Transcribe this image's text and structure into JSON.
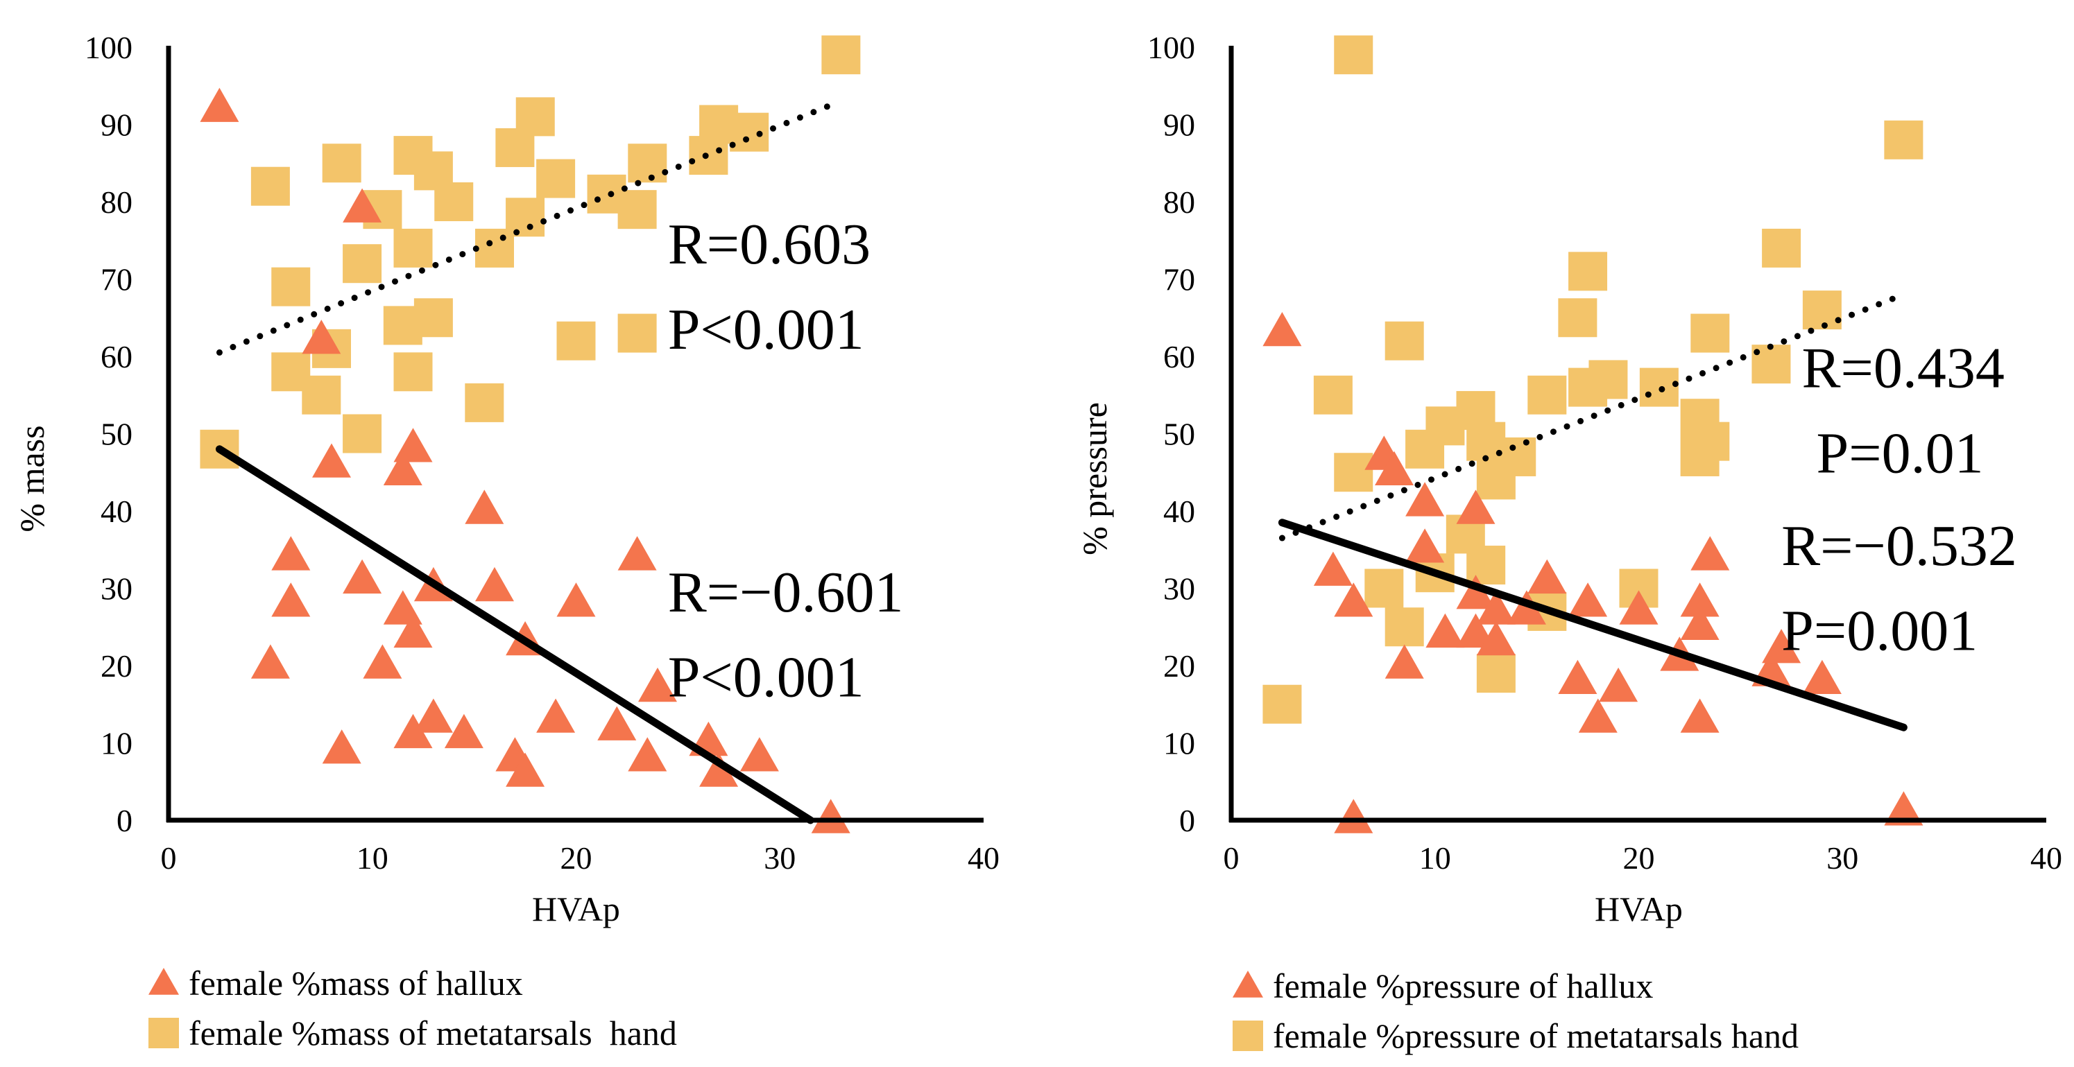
{
  "chart_data": [
    {
      "type": "scatter",
      "id": "mass",
      "title": "",
      "xlabel": "HVAp",
      "ylabel": "% mass",
      "xlim": [
        0,
        40
      ],
      "ylim": [
        0,
        100
      ],
      "xticks": [
        0,
        10,
        20,
        30,
        40
      ],
      "yticks": [
        0,
        10,
        20,
        30,
        40,
        50,
        60,
        70,
        80,
        90,
        100
      ],
      "series": [
        {
          "name": "female %mass of hallux",
          "marker": "triangle",
          "color": "#F4754D",
          "points": [
            [
              2.5,
              92
            ],
            [
              9.5,
              79
            ],
            [
              7.5,
              62
            ],
            [
              8,
              46
            ],
            [
              12,
              48
            ],
            [
              11.5,
              45
            ],
            [
              15.5,
              40
            ],
            [
              6,
              34
            ],
            [
              6,
              28
            ],
            [
              9.5,
              31
            ],
            [
              16,
              30
            ],
            [
              13,
              30
            ],
            [
              11.5,
              27
            ],
            [
              12,
              24
            ],
            [
              17.5,
              23
            ],
            [
              20,
              28
            ],
            [
              5,
              20
            ],
            [
              10.5,
              20
            ],
            [
              23,
              34
            ],
            [
              8.5,
              9
            ],
            [
              13,
              13
            ],
            [
              14.5,
              11
            ],
            [
              12,
              11
            ],
            [
              17,
              8
            ],
            [
              17.5,
              6
            ],
            [
              19,
              13
            ],
            [
              22,
              12
            ],
            [
              24,
              17
            ],
            [
              23.5,
              8
            ],
            [
              26.5,
              10
            ],
            [
              27,
              6
            ],
            [
              29,
              8
            ],
            [
              32.5,
              0
            ]
          ]
        },
        {
          "name": "female %mass of metatarsals  hand",
          "marker": "square",
          "color": "#F3C46A",
          "points": [
            [
              5,
              82
            ],
            [
              8.5,
              85
            ],
            [
              10.5,
              79
            ],
            [
              12,
              86
            ],
            [
              13,
              84
            ],
            [
              14,
              80
            ],
            [
              9.5,
              72
            ],
            [
              12,
              74
            ],
            [
              11.5,
              64
            ],
            [
              13,
              65
            ],
            [
              12,
              58
            ],
            [
              6,
              69
            ],
            [
              6,
              58
            ],
            [
              8,
              61
            ],
            [
              7.5,
              55
            ],
            [
              9.5,
              50
            ],
            [
              15.5,
              54
            ],
            [
              16,
              74
            ],
            [
              17,
              87
            ],
            [
              18,
              91
            ],
            [
              17.5,
              78
            ],
            [
              19,
              83
            ],
            [
              21.5,
              81
            ],
            [
              23,
              79
            ],
            [
              23.5,
              85
            ],
            [
              20,
              62
            ],
            [
              23,
              63
            ],
            [
              26.5,
              86
            ],
            [
              27,
              90
            ],
            [
              28.5,
              89
            ],
            [
              33,
              99
            ],
            [
              2.5,
              48
            ]
          ]
        }
      ],
      "trendlines": [
        {
          "series": "female %mass of metatarsals  hand",
          "style": "dotted",
          "x": [
            2.5,
            32.5
          ],
          "y": [
            60.5,
            92.5
          ]
        },
        {
          "series": "female %mass of hallux",
          "style": "solid",
          "x": [
            2.5,
            31.5
          ],
          "y": [
            48,
            0
          ]
        }
      ],
      "annotations": [
        {
          "id": "r_meta",
          "text": "R=0.603",
          "x": 24.5,
          "y": 72
        },
        {
          "id": "p_meta",
          "text": "P<0.001",
          "x": 24.5,
          "y": 61
        },
        {
          "id": "r_hallux",
          "text": "R=−0.601",
          "x": 24.5,
          "y": 27
        },
        {
          "id": "p_hallux",
          "text": "P<0.001",
          "x": 24.5,
          "y": 16
        }
      ]
    },
    {
      "type": "scatter",
      "id": "pressure",
      "title": "",
      "xlabel": "HVAp",
      "ylabel": "% pressure",
      "xlim": [
        0,
        40
      ],
      "ylim": [
        0,
        100
      ],
      "xticks": [
        0,
        10,
        20,
        30,
        40
      ],
      "yticks": [
        0,
        10,
        20,
        30,
        40,
        50,
        60,
        70,
        80,
        90,
        100
      ],
      "series": [
        {
          "name": "female %pressure of hallux",
          "marker": "triangle",
          "color": "#F4754D",
          "points": [
            [
              2.5,
              63
            ],
            [
              7.5,
              47
            ],
            [
              8,
              45
            ],
            [
              9.5,
              41
            ],
            [
              12,
              40
            ],
            [
              5,
              32
            ],
            [
              6,
              28
            ],
            [
              9.5,
              35
            ],
            [
              12,
              29
            ],
            [
              13,
              27
            ],
            [
              14.5,
              27
            ],
            [
              15.5,
              31
            ],
            [
              17.5,
              28
            ],
            [
              10.5,
              24
            ],
            [
              12,
              24
            ],
            [
              13,
              23
            ],
            [
              8.5,
              20
            ],
            [
              17,
              18
            ],
            [
              19,
              17
            ],
            [
              18,
              13
            ],
            [
              20,
              27
            ],
            [
              22,
              21
            ],
            [
              23,
              25
            ],
            [
              23,
              28
            ],
            [
              23.5,
              34
            ],
            [
              23,
              13
            ],
            [
              26.5,
              19
            ],
            [
              27,
              22
            ],
            [
              29,
              18
            ],
            [
              6,
              0
            ],
            [
              33,
              1
            ]
          ]
        },
        {
          "name": "female %pressure of metatarsals hand",
          "marker": "square",
          "color": "#F3C46A",
          "points": [
            [
              6,
              99
            ],
            [
              33,
              88
            ],
            [
              27,
              74
            ],
            [
              17.5,
              71
            ],
            [
              17,
              65
            ],
            [
              23.5,
              63
            ],
            [
              29,
              66
            ],
            [
              26.5,
              59
            ],
            [
              8.5,
              62
            ],
            [
              5,
              55
            ],
            [
              6,
              45
            ],
            [
              9.5,
              48
            ],
            [
              10.5,
              51
            ],
            [
              12,
              53
            ],
            [
              12.5,
              49
            ],
            [
              13,
              44
            ],
            [
              14,
              47
            ],
            [
              15.5,
              55
            ],
            [
              17.5,
              56
            ],
            [
              18.5,
              57
            ],
            [
              21,
              56
            ],
            [
              23,
              52
            ],
            [
              23,
              47
            ],
            [
              23.5,
              49
            ],
            [
              11.5,
              37
            ],
            [
              12.5,
              33
            ],
            [
              10,
              32
            ],
            [
              7.5,
              30
            ],
            [
              8.5,
              25
            ],
            [
              15.5,
              27
            ],
            [
              20,
              30
            ],
            [
              13,
              19
            ],
            [
              2.5,
              15
            ]
          ]
        }
      ],
      "trendlines": [
        {
          "series": "female %pressure of metatarsals hand",
          "style": "dotted",
          "x": [
            2.5,
            33
          ],
          "y": [
            36.5,
            68
          ]
        },
        {
          "series": "female %pressure of hallux",
          "style": "solid",
          "x": [
            2.5,
            33
          ],
          "y": [
            38.5,
            12
          ]
        }
      ],
      "annotations": [
        {
          "id": "r_meta",
          "text": "R=0.434",
          "x": 28,
          "y": 56
        },
        {
          "id": "p_meta",
          "text": " P=0.01",
          "x": 28,
          "y": 45
        },
        {
          "id": "r_hallux",
          "text": "R=−0.532",
          "x": 27,
          "y": 33
        },
        {
          "id": "p_hallux",
          "text": "P=0.001",
          "x": 27,
          "y": 22
        }
      ]
    }
  ]
}
